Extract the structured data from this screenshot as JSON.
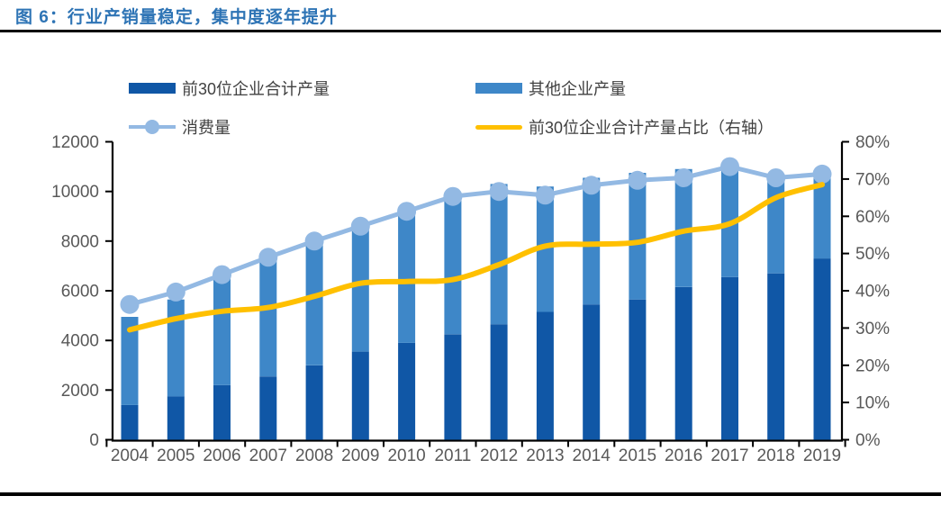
{
  "title": "图 6：行业产销量稳定，集中度逐年提升",
  "legend": [
    {
      "label": "前30位企业合计产量",
      "swatch": "rect",
      "color": "#1057A6"
    },
    {
      "label": "其他企业产量",
      "swatch": "rect",
      "color": "#3E87C8"
    },
    {
      "label": "消费量",
      "swatch": "line-marker",
      "color": "#93B9E3"
    },
    {
      "label": "前30位企业合计产量占比（右轴）",
      "swatch": "line",
      "color": "#FFC000"
    }
  ],
  "colors": {
    "title": "#2E74B5",
    "axis_line": "#000000",
    "tick_label": "#595959",
    "bar_top30": "#1057A6",
    "bar_others": "#3E87C8",
    "consumption_line": "#93B9E3",
    "share_line": "#FFC000",
    "divider": "#000000"
  },
  "chart_data": {
    "type": "combo",
    "title": "行业产销量稳定，集中度逐年提升",
    "categories": [
      "2004",
      "2005",
      "2006",
      "2007",
      "2008",
      "2009",
      "2010",
      "2011",
      "2012",
      "2013",
      "2014",
      "2015",
      "2016",
      "2017",
      "2018",
      "2019"
    ],
    "series": [
      {
        "name": "前30位企业合计产量",
        "type": "bar",
        "stacked": true,
        "axis": "left",
        "color": "#1057A6",
        "values": [
          1400,
          1750,
          2200,
          2550,
          3000,
          3550,
          3900,
          4250,
          4650,
          5150,
          5450,
          5650,
          6150,
          6550,
          6700,
          7300
        ]
      },
      {
        "name": "其他企业产量",
        "type": "bar",
        "stacked": true,
        "axis": "left",
        "color": "#3E87C8",
        "values": [
          3550,
          3900,
          4350,
          4750,
          4950,
          5000,
          5250,
          5450,
          5650,
          5050,
          5100,
          5100,
          4750,
          4550,
          3700,
          3500
        ]
      },
      {
        "name": "消费量",
        "type": "line",
        "axis": "left",
        "color": "#93B9E3",
        "marker": "circle",
        "values": [
          5450,
          5950,
          6650,
          7350,
          8000,
          8600,
          9200,
          9800,
          10000,
          9850,
          10250,
          10450,
          10550,
          11000,
          10550,
          10700
        ]
      },
      {
        "name": "前30位企业合计产量占比（右轴）",
        "type": "line",
        "axis": "right",
        "color": "#FFC000",
        "smooth": true,
        "values": [
          29.5,
          32.5,
          34.5,
          35.5,
          38.5,
          42,
          42.5,
          43,
          47,
          52,
          52.5,
          53,
          56,
          58,
          65,
          68.5
        ]
      }
    ],
    "left_axis": {
      "min": 0,
      "max": 12000,
      "step": 2000,
      "tick_labels": [
        "0",
        "2000",
        "4000",
        "6000",
        "8000",
        "10000",
        "12000"
      ]
    },
    "right_axis": {
      "min": 0,
      "max": 80,
      "step": 10,
      "tick_labels": [
        "0%",
        "10%",
        "20%",
        "30%",
        "40%",
        "50%",
        "60%",
        "70%",
        "80%"
      ]
    },
    "legend_position": "top",
    "grid": false
  }
}
